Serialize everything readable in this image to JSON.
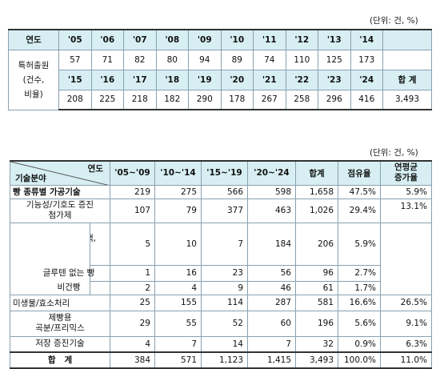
{
  "table1": {
    "unit": "(단위: 건, %)",
    "header_label": "연도",
    "years_top": [
      "'05",
      "'06",
      "'07",
      "'08",
      "'09",
      "'10",
      "'11",
      "'12",
      "'13",
      "'14"
    ],
    "row_label": "특허출원\n(건수,\n비율)",
    "values_top": [
      "57",
      "71",
      "82",
      "80",
      "94",
      "89",
      "74",
      "110",
      "125",
      "173"
    ],
    "years_bottom": [
      "'15",
      "'16",
      "'17",
      "'18",
      "'19",
      "'20",
      "'21",
      "'22",
      "'23",
      "'24"
    ],
    "total_label": "합 계",
    "values_bottom": [
      "208",
      "225",
      "218",
      "182",
      "290",
      "178",
      "267",
      "258",
      "296",
      "416"
    ],
    "total_value": "3,493"
  },
  "table2": {
    "unit": "(단위: 건, %)",
    "corner_top": "연도",
    "corner_bottom": "기술분야",
    "headers": [
      "'05~'09",
      "'10~'14",
      "'15~'19",
      "'20~'24",
      "합계",
      "점유율",
      "연평균\n증가율"
    ],
    "rows": [
      {
        "label": "빵 종류별 가공기술",
        "values": [
          "219",
          "275",
          "566",
          "598",
          "1,658",
          "47.5%"
        ],
        "growth": "5.9%"
      },
      {
        "label": "기능성/기호도 증진\n첨가제",
        "values": [
          "107",
          "79",
          "377",
          "463",
          "1,026",
          "29.4%"
        ],
        "growth": "13.1%"
      },
      {
        "label": "무설탕, 고단백,\n저지방 빵",
        "values": [
          "5",
          "10",
          "7",
          "184",
          "206",
          "5.9%"
        ]
      },
      {
        "label": "글루텐 없는 빵",
        "values": [
          "1",
          "16",
          "23",
          "56",
          "96",
          "2.7%"
        ]
      },
      {
        "label": "비건빵",
        "values": [
          "2",
          "4",
          "9",
          "46",
          "61",
          "1.7%"
        ]
      },
      {
        "label": "미생물/효소처리",
        "values": [
          "25",
          "155",
          "114",
          "287",
          "581",
          "16.6%"
        ],
        "growth": "26.5%"
      },
      {
        "label": "제빵용\n곡분/프리믹스",
        "values": [
          "29",
          "55",
          "52",
          "60",
          "196",
          "5.6%"
        ],
        "growth": "9.1%"
      },
      {
        "label": "저장 증진기술",
        "values": [
          "4",
          "7",
          "14",
          "7",
          "32",
          "0.9%"
        ],
        "growth": "6.3%"
      },
      {
        "label": "합   계",
        "values": [
          "384",
          "571",
          "1,123",
          "1,415",
          "3,493",
          "100.0%"
        ],
        "growth": "11.0%"
      }
    ]
  }
}
